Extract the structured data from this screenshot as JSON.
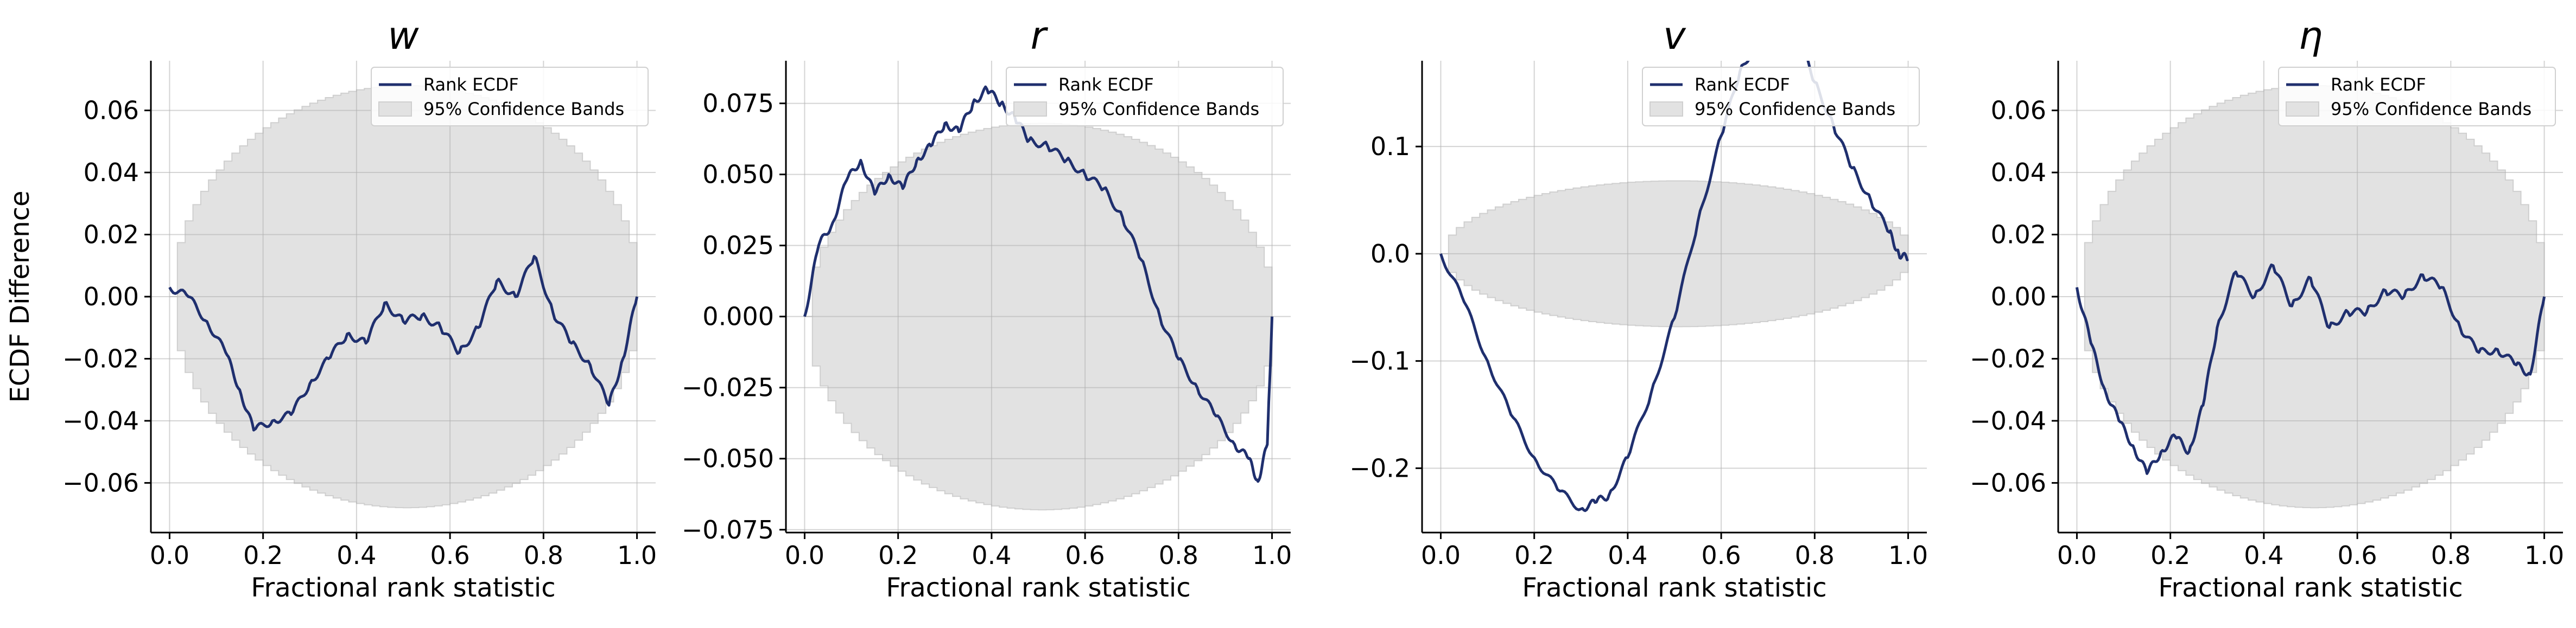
{
  "chart_data": [
    {
      "type": "line",
      "title": "w",
      "xlabel": "Fractional rank statistic",
      "ylabel": "ECDF Difference",
      "xlim": [
        -0.04,
        1.04
      ],
      "ylim": [
        -0.076,
        0.076
      ],
      "xticks": [
        0.0,
        0.2,
        0.4,
        0.6,
        0.8,
        1.0
      ],
      "xtick_labels": [
        "0.0",
        "0.2",
        "0.4",
        "0.6",
        "0.8",
        "1.0"
      ],
      "yticks": [
        -0.06,
        -0.04,
        -0.02,
        0.0,
        0.02,
        0.04,
        0.06
      ],
      "ytick_labels": [
        "−0.06",
        "−0.04",
        "−0.02",
        "0.00",
        "0.02",
        "0.04",
        "0.06"
      ],
      "grid": true,
      "legend_position": "top-right",
      "band_halfwidth": 0.068,
      "series": [
        {
          "name": "Rank ECDF",
          "color": "#1f2f6e",
          "x": [
            0.0,
            0.04,
            0.08,
            0.12,
            0.15,
            0.18,
            0.22,
            0.26,
            0.3,
            0.34,
            0.38,
            0.42,
            0.46,
            0.5,
            0.54,
            0.58,
            0.62,
            0.66,
            0.7,
            0.74,
            0.78,
            0.82,
            0.86,
            0.9,
            0.94,
            0.97,
            1.0
          ],
          "y": [
            0.003,
            0.0,
            -0.008,
            -0.018,
            -0.03,
            -0.043,
            -0.04,
            -0.038,
            -0.028,
            -0.02,
            -0.012,
            -0.015,
            -0.002,
            -0.008,
            -0.006,
            -0.01,
            -0.018,
            -0.01,
            0.005,
            0.0,
            0.013,
            -0.005,
            -0.015,
            -0.022,
            -0.035,
            -0.02,
            0.0
          ]
        },
        {
          "name": "95% Confidence Bands",
          "color": "#e2e2e2"
        }
      ]
    },
    {
      "type": "line",
      "title": "r",
      "xlabel": "Fractional rank statistic",
      "ylabel": "",
      "xlim": [
        -0.04,
        1.04
      ],
      "ylim": [
        -0.076,
        0.09
      ],
      "xticks": [
        0.0,
        0.2,
        0.4,
        0.6,
        0.8,
        1.0
      ],
      "xtick_labels": [
        "0.0",
        "0.2",
        "0.4",
        "0.6",
        "0.8",
        "1.0"
      ],
      "yticks": [
        -0.075,
        -0.05,
        -0.025,
        0.0,
        0.025,
        0.05,
        0.075
      ],
      "ytick_labels": [
        "−0.075",
        "−0.050",
        "−0.025",
        "0.000",
        "0.025",
        "0.050",
        "0.075"
      ],
      "grid": true,
      "legend_position": "top-right",
      "band_halfwidth": 0.068,
      "series": [
        {
          "name": "Rank ECDF",
          "color": "#1f2f6e",
          "x": [
            0.0,
            0.03,
            0.06,
            0.09,
            0.12,
            0.15,
            0.18,
            0.21,
            0.24,
            0.27,
            0.3,
            0.33,
            0.36,
            0.39,
            0.42,
            0.45,
            0.48,
            0.52,
            0.56,
            0.6,
            0.64,
            0.68,
            0.72,
            0.76,
            0.8,
            0.84,
            0.88,
            0.92,
            0.95,
            0.97,
            0.99,
            1.0
          ],
          "y": [
            0.0,
            0.025,
            0.033,
            0.048,
            0.055,
            0.043,
            0.05,
            0.045,
            0.055,
            0.06,
            0.068,
            0.065,
            0.075,
            0.08,
            0.075,
            0.07,
            0.062,
            0.06,
            0.055,
            0.05,
            0.045,
            0.035,
            0.02,
            0.0,
            -0.015,
            -0.025,
            -0.035,
            -0.045,
            -0.05,
            -0.058,
            -0.045,
            0.0
          ]
        },
        {
          "name": "95% Confidence Bands",
          "color": "#e2e2e2"
        }
      ]
    },
    {
      "type": "line",
      "title": "v",
      "xlabel": "Fractional rank statistic",
      "ylabel": "",
      "xlim": [
        -0.04,
        1.04
      ],
      "ylim": [
        -0.26,
        0.18
      ],
      "xticks": [
        0.0,
        0.2,
        0.4,
        0.6,
        0.8,
        1.0
      ],
      "xtick_labels": [
        "0.0",
        "0.2",
        "0.4",
        "0.6",
        "0.8",
        "1.0"
      ],
      "yticks": [
        -0.2,
        -0.1,
        0.0,
        0.1
      ],
      "ytick_labels": [
        "−0.2",
        "−0.1",
        "0.0",
        "0.1"
      ],
      "grid": true,
      "legend_position": "top-right",
      "band_halfwidth": 0.068,
      "series": [
        {
          "name": "Rank ECDF",
          "color": "#1f2f6e",
          "x": [
            0.0,
            0.05,
            0.1,
            0.15,
            0.2,
            0.25,
            0.3,
            0.33,
            0.36,
            0.4,
            0.45,
            0.5,
            0.55,
            0.6,
            0.64,
            0.68,
            0.72,
            0.76,
            0.8,
            0.84,
            0.88,
            0.92,
            0.96,
            0.98,
            1.0
          ],
          "y": [
            0.0,
            -0.045,
            -0.1,
            -0.15,
            -0.19,
            -0.22,
            -0.238,
            -0.232,
            -0.225,
            -0.19,
            -0.13,
            -0.06,
            0.03,
            0.11,
            0.17,
            0.2,
            0.22,
            0.21,
            0.16,
            0.12,
            0.08,
            0.05,
            0.02,
            0.0,
            -0.005
          ]
        },
        {
          "name": "95% Confidence Bands",
          "color": "#e2e2e2"
        }
      ]
    },
    {
      "type": "line",
      "title": "η",
      "xlabel": "Fractional rank statistic",
      "ylabel": "",
      "xlim": [
        -0.04,
        1.04
      ],
      "ylim": [
        -0.076,
        0.076
      ],
      "xticks": [
        0.0,
        0.2,
        0.4,
        0.6,
        0.8,
        1.0
      ],
      "xtick_labels": [
        "0.0",
        "0.2",
        "0.4",
        "0.6",
        "0.8",
        "1.0"
      ],
      "yticks": [
        -0.06,
        -0.04,
        -0.02,
        0.0,
        0.02,
        0.04,
        0.06
      ],
      "ytick_labels": [
        "−0.06",
        "−0.04",
        "−0.02",
        "0.00",
        "0.02",
        "0.04",
        "0.06"
      ],
      "grid": true,
      "legend_position": "top-right",
      "band_halfwidth": 0.068,
      "series": [
        {
          "name": "Rank ECDF",
          "color": "#1f2f6e",
          "x": [
            0.0,
            0.03,
            0.06,
            0.09,
            0.12,
            0.15,
            0.18,
            0.21,
            0.24,
            0.27,
            0.3,
            0.34,
            0.38,
            0.42,
            0.46,
            0.5,
            0.54,
            0.58,
            0.62,
            0.66,
            0.7,
            0.74,
            0.78,
            0.82,
            0.86,
            0.9,
            0.94,
            0.97,
            1.0
          ],
          "y": [
            0.003,
            -0.015,
            -0.03,
            -0.04,
            -0.048,
            -0.057,
            -0.05,
            -0.045,
            -0.05,
            -0.035,
            -0.01,
            0.008,
            0.0,
            0.01,
            -0.003,
            0.006,
            -0.01,
            -0.005,
            -0.005,
            0.002,
            0.0,
            0.007,
            0.003,
            -0.01,
            -0.018,
            -0.017,
            -0.022,
            -0.025,
            0.0
          ]
        },
        {
          "name": "95% Confidence Bands",
          "color": "#e2e2e2"
        }
      ]
    }
  ]
}
